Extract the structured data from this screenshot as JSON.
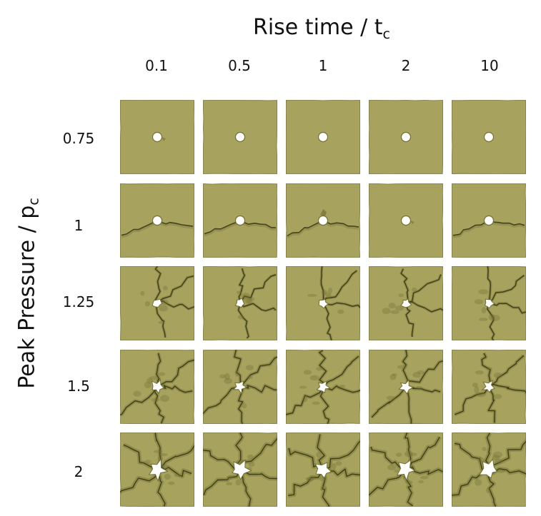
{
  "column_axis": {
    "title": "Rise time / t",
    "title_subscript": "c",
    "values": [
      "0.1",
      "0.5",
      "1",
      "2",
      "10"
    ]
  },
  "row_axis": {
    "title": "Peak Pressure / p",
    "title_subscript": "c",
    "values": [
      "0.75",
      "1",
      "1.25",
      "1.5",
      "2"
    ]
  },
  "colors": {
    "slab_fill": "#a7a25e",
    "slab_shadow": "#737033",
    "crack": "#3f3d19",
    "hole": "#ffffff",
    "background": "#ffffff"
  }
}
